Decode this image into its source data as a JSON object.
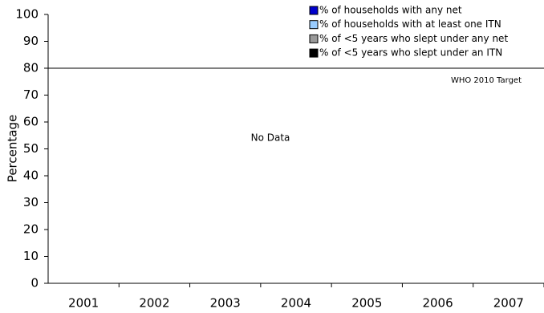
{
  "chart_data": {
    "type": "bar",
    "ylabel": "Percentage",
    "categories": [
      "2001",
      "2002",
      "2003",
      "2004",
      "2005",
      "2006",
      "2007"
    ],
    "series": [
      {
        "name": "% of households with any net",
        "color": "#0000cc",
        "values": [
          null,
          null,
          null,
          null,
          null,
          null,
          null
        ]
      },
      {
        "name": "% of households with at least one ITN",
        "color": "#99ccff",
        "values": [
          null,
          null,
          null,
          null,
          null,
          null,
          null
        ]
      },
      {
        "name": "% of <5 years who slept under any net",
        "color": "#999999",
        "values": [
          null,
          null,
          null,
          null,
          null,
          null,
          null
        ]
      },
      {
        "name": "% of <5 years who slept under an ITN",
        "color": "#000000",
        "values": [
          null,
          null,
          null,
          null,
          null,
          null,
          null
        ]
      }
    ],
    "ylim": [
      0,
      100
    ],
    "yticks": [
      0,
      10,
      20,
      30,
      40,
      50,
      60,
      70,
      80,
      90,
      100
    ],
    "target": {
      "value": 80,
      "label": "WHO 2010 Target",
      "color": "#0000ff"
    },
    "annotation": "No Data",
    "legend": "top-right"
  }
}
